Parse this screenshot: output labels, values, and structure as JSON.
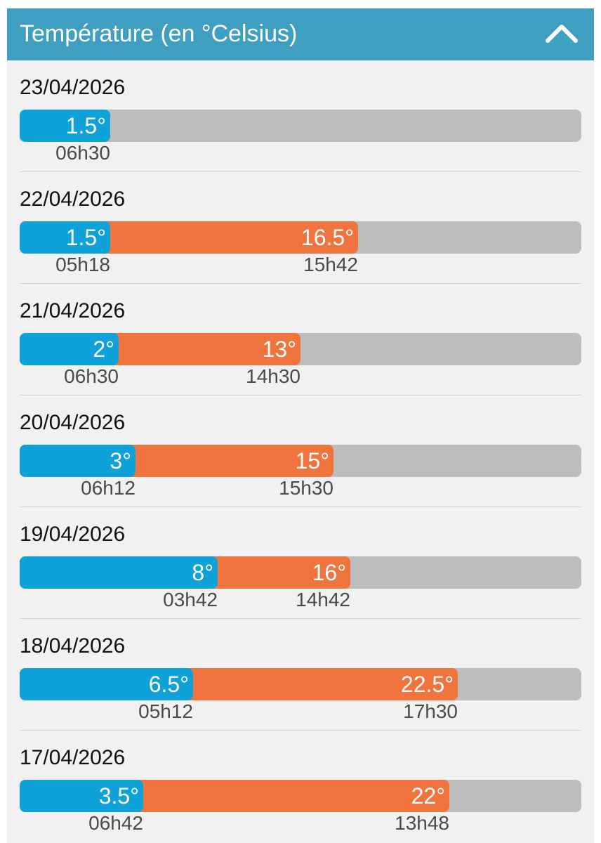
{
  "header": {
    "title": "Température (en °Celsius)",
    "collapse_icon": "chevron-up-icon"
  },
  "colors": {
    "header_bg": "#3f9fc0",
    "min_bar": "#0fa2d8",
    "max_bar": "#f0743d",
    "track": "#bdbdbd"
  },
  "scale": {
    "min_c": -4,
    "max_c": 30
  },
  "days": [
    {
      "date": "23/04/2026",
      "min": {
        "value": 1.5,
        "label": "1.5°",
        "time": "06h30"
      },
      "max": null
    },
    {
      "date": "22/04/2026",
      "min": {
        "value": 1.5,
        "label": "1.5°",
        "time": "05h18"
      },
      "max": {
        "value": 16.5,
        "label": "16.5°",
        "time": "15h42"
      }
    },
    {
      "date": "21/04/2026",
      "min": {
        "value": 2,
        "label": "2°",
        "time": "06h30"
      },
      "max": {
        "value": 13,
        "label": "13°",
        "time": "14h30"
      }
    },
    {
      "date": "20/04/2026",
      "min": {
        "value": 3,
        "label": "3°",
        "time": "06h12"
      },
      "max": {
        "value": 15,
        "label": "15°",
        "time": "15h30"
      }
    },
    {
      "date": "19/04/2026",
      "min": {
        "value": 8,
        "label": "8°",
        "time": "03h42"
      },
      "max": {
        "value": 16,
        "label": "16°",
        "time": "14h42"
      }
    },
    {
      "date": "18/04/2026",
      "min": {
        "value": 6.5,
        "label": "6.5°",
        "time": "05h12"
      },
      "max": {
        "value": 22.5,
        "label": "22.5°",
        "time": "17h30"
      }
    },
    {
      "date": "17/04/2026",
      "min": {
        "value": 3.5,
        "label": "3.5°",
        "time": "06h42"
      },
      "max": {
        "value": 22,
        "label": "22°",
        "time": "13h48"
      }
    }
  ]
}
